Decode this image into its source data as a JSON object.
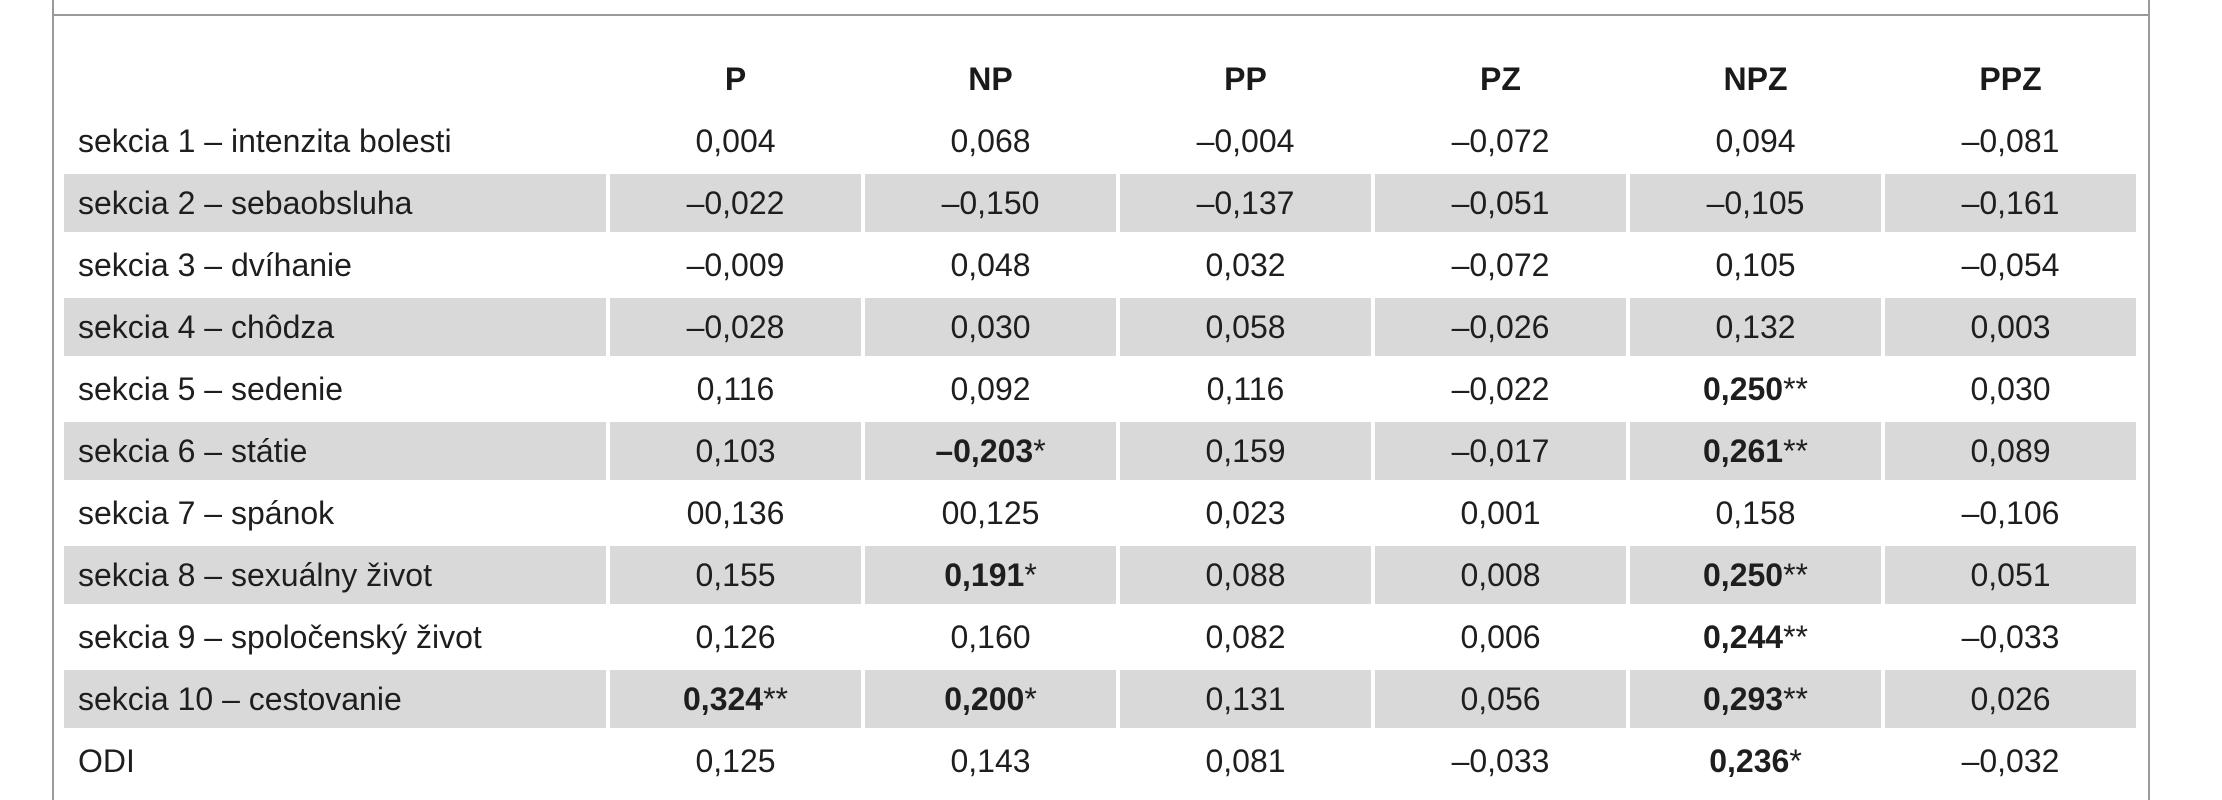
{
  "table": {
    "columns": [
      "",
      "P",
      "NP",
      "PP",
      "PZ",
      "NPZ",
      "PPZ"
    ],
    "rows": [
      {
        "label": "sekcia 1 – intenzita bolesti",
        "values": [
          {
            "v": "0,004",
            "bold": false,
            "sig": ""
          },
          {
            "v": "0,068",
            "bold": false,
            "sig": ""
          },
          {
            "v": "–0,004",
            "bold": false,
            "sig": ""
          },
          {
            "v": "–0,072",
            "bold": false,
            "sig": ""
          },
          {
            "v": "0,094",
            "bold": false,
            "sig": ""
          },
          {
            "v": "–0,081",
            "bold": false,
            "sig": ""
          }
        ]
      },
      {
        "label": "sekcia 2 – sebaobsluha",
        "values": [
          {
            "v": "–0,022",
            "bold": false,
            "sig": ""
          },
          {
            "v": "–0,150",
            "bold": false,
            "sig": ""
          },
          {
            "v": "–0,137",
            "bold": false,
            "sig": ""
          },
          {
            "v": "–0,051",
            "bold": false,
            "sig": ""
          },
          {
            "v": "–0,105",
            "bold": false,
            "sig": ""
          },
          {
            "v": "–0,161",
            "bold": false,
            "sig": ""
          }
        ]
      },
      {
        "label": "sekcia 3 – dvíhanie",
        "values": [
          {
            "v": "–0,009",
            "bold": false,
            "sig": ""
          },
          {
            "v": "0,048",
            "bold": false,
            "sig": ""
          },
          {
            "v": "0,032",
            "bold": false,
            "sig": ""
          },
          {
            "v": "–0,072",
            "bold": false,
            "sig": ""
          },
          {
            "v": "0,105",
            "bold": false,
            "sig": ""
          },
          {
            "v": "–0,054",
            "bold": false,
            "sig": ""
          }
        ]
      },
      {
        "label": "sekcia 4 – chôdza",
        "values": [
          {
            "v": "–0,028",
            "bold": false,
            "sig": ""
          },
          {
            "v": "0,030",
            "bold": false,
            "sig": ""
          },
          {
            "v": "0,058",
            "bold": false,
            "sig": ""
          },
          {
            "v": "–0,026",
            "bold": false,
            "sig": ""
          },
          {
            "v": "0,132",
            "bold": false,
            "sig": ""
          },
          {
            "v": "0,003",
            "bold": false,
            "sig": ""
          }
        ]
      },
      {
        "label": "sekcia 5 – sedenie",
        "values": [
          {
            "v": "0,116",
            "bold": false,
            "sig": ""
          },
          {
            "v": "0,092",
            "bold": false,
            "sig": ""
          },
          {
            "v": "0,116",
            "bold": false,
            "sig": ""
          },
          {
            "v": "–0,022",
            "bold": false,
            "sig": ""
          },
          {
            "v": "0,250",
            "bold": true,
            "sig": "**"
          },
          {
            "v": "0,030",
            "bold": false,
            "sig": ""
          }
        ]
      },
      {
        "label": "sekcia 6 – státie",
        "values": [
          {
            "v": "0,103",
            "bold": false,
            "sig": ""
          },
          {
            "v": "–0,203",
            "bold": true,
            "sig": "*"
          },
          {
            "v": "0,159",
            "bold": false,
            "sig": ""
          },
          {
            "v": "–0,017",
            "bold": false,
            "sig": ""
          },
          {
            "v": "0,261",
            "bold": true,
            "sig": "**"
          },
          {
            "v": "0,089",
            "bold": false,
            "sig": ""
          }
        ]
      },
      {
        "label": "sekcia 7 – spánok",
        "values": [
          {
            "v": "00,136",
            "bold": false,
            "sig": ""
          },
          {
            "v": "00,125",
            "bold": false,
            "sig": ""
          },
          {
            "v": "0,023",
            "bold": false,
            "sig": ""
          },
          {
            "v": "0,001",
            "bold": false,
            "sig": ""
          },
          {
            "v": "0,158",
            "bold": false,
            "sig": ""
          },
          {
            "v": "–0,106",
            "bold": false,
            "sig": ""
          }
        ]
      },
      {
        "label": "sekcia 8 – sexuálny život",
        "values": [
          {
            "v": "0,155",
            "bold": false,
            "sig": ""
          },
          {
            "v": "0,191",
            "bold": true,
            "sig": "*"
          },
          {
            "v": "0,088",
            "bold": false,
            "sig": ""
          },
          {
            "v": "0,008",
            "bold": false,
            "sig": ""
          },
          {
            "v": "0,250",
            "bold": true,
            "sig": "**"
          },
          {
            "v": "0,051",
            "bold": false,
            "sig": ""
          }
        ]
      },
      {
        "label": "sekcia 9 – spoločenský život",
        "values": [
          {
            "v": "0,126",
            "bold": false,
            "sig": ""
          },
          {
            "v": "0,160",
            "bold": false,
            "sig": ""
          },
          {
            "v": "0,082",
            "bold": false,
            "sig": ""
          },
          {
            "v": "0,006",
            "bold": false,
            "sig": ""
          },
          {
            "v": "0,244",
            "bold": true,
            "sig": "**"
          },
          {
            "v": "–0,033",
            "bold": false,
            "sig": ""
          }
        ]
      },
      {
        "label": "sekcia 10 – cestovanie",
        "values": [
          {
            "v": "0,324",
            "bold": true,
            "sig": "**"
          },
          {
            "v": "0,200",
            "bold": true,
            "sig": "*"
          },
          {
            "v": "0,131",
            "bold": false,
            "sig": ""
          },
          {
            "v": "0,056",
            "bold": false,
            "sig": ""
          },
          {
            "v": "0,293",
            "bold": true,
            "sig": "**"
          },
          {
            "v": "0,026",
            "bold": false,
            "sig": ""
          }
        ]
      },
      {
        "label": "ODI",
        "values": [
          {
            "v": "0,125",
            "bold": false,
            "sig": ""
          },
          {
            "v": "0,143",
            "bold": false,
            "sig": ""
          },
          {
            "v": "0,081",
            "bold": false,
            "sig": ""
          },
          {
            "v": "–0,033",
            "bold": false,
            "sig": ""
          },
          {
            "v": "0,236",
            "bold": true,
            "sig": "*"
          },
          {
            "v": "–0,032",
            "bold": false,
            "sig": ""
          }
        ]
      }
    ]
  },
  "colors": {
    "shade": "#d9d9d9",
    "rule": "#9a9a9a",
    "text": "#1e1e1e"
  }
}
